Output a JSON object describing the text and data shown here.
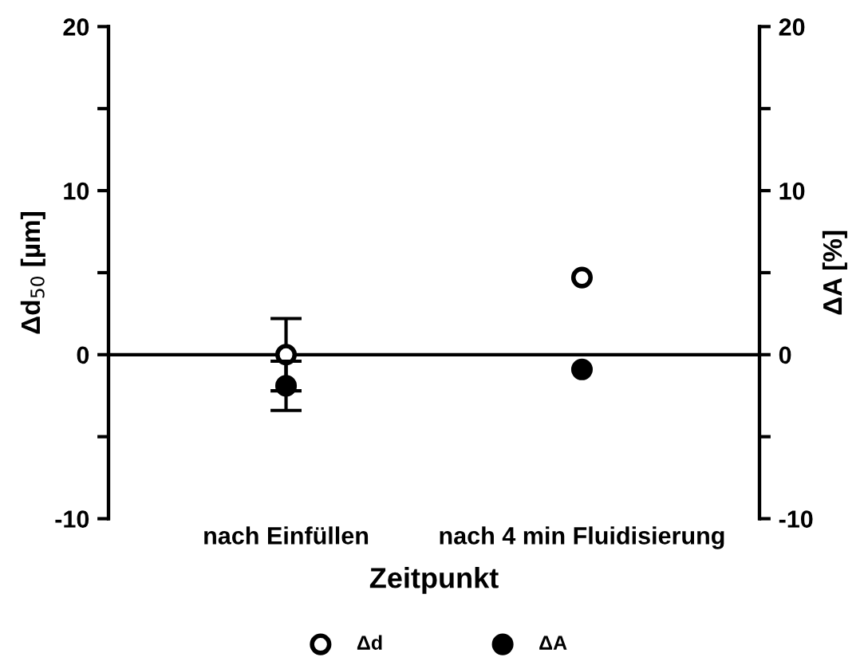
{
  "chart_data": {
    "type": "scatter",
    "xlabel": "Zeitpunkt",
    "ylabel": "Δd$_{50}$ [µm]",
    "y2label": "ΔA [%]",
    "categories": [
      "nach Einfüllen",
      "nach 4 min Fluidisierung"
    ],
    "series": [
      {
        "name": "Δd",
        "color": "#000000",
        "marker": "circle",
        "values": [
          0,
          4.7
        ],
        "errors": [
          2.2,
          null
        ]
      },
      {
        "name": "ΔA",
        "color": "#000000",
        "marker": "circle",
        "axis": "y2",
        "values": [
          -1.9,
          -0.9
        ],
        "errors": [
          1.5,
          null
        ]
      }
    ],
    "ylim": [
      -10,
      20
    ],
    "yticks": [
      -10,
      {
        "value": -5,
        "label": null
      },
      0,
      {
        "value": 5,
        "label": null
      },
      10,
      {
        "value": 15,
        "label": null
      },
      20
    ],
    "y2lim": [
      -10,
      20
    ],
    "y2ticks": [
      -10,
      {
        "value": -5,
        "label": null
      },
      0,
      {
        "value": 5,
        "label": null
      },
      10,
      {
        "value": 15,
        "label": null
      },
      20
    ],
    "ref_lines": [
      {
        "axis": "y",
        "value": 0,
        "color": "#000000"
      }
    ],
    "grid": false,
    "legend": "bottom"
  }
}
